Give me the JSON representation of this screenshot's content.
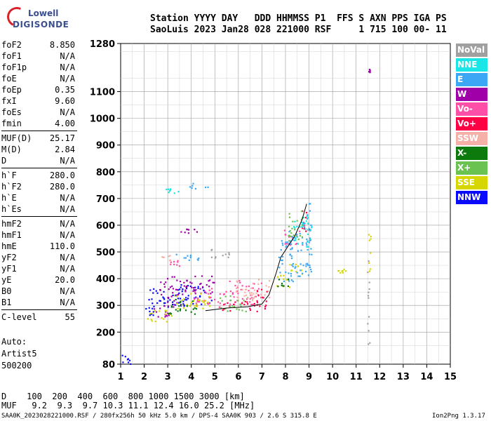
{
  "logo": {
    "line1": "Lowell",
    "line2": "DIGISONDE"
  },
  "header": {
    "line1": "Station YYYY DAY   DDD HHMMSS P1  FFS S AXN PPS IGA PS",
    "line2": "SaoLuis 2023 Jan28 028 221000 RSF     1 715 100 00- 11"
  },
  "params": [
    {
      "group": [
        {
          "name": "foF2",
          "value": "8.850"
        },
        {
          "name": "foF1",
          "value": "N/A"
        },
        {
          "name": "foF1p",
          "value": "N/A"
        },
        {
          "name": "foE",
          "value": "N/A"
        },
        {
          "name": "foEp",
          "value": "0.35"
        },
        {
          "name": "fxI",
          "value": "9.60"
        },
        {
          "name": "foEs",
          "value": "N/A"
        },
        {
          "name": "fmin",
          "value": "4.00"
        }
      ]
    },
    {
      "group": [
        {
          "name": "MUF(D)",
          "value": "25.17"
        },
        {
          "name": "M(D)",
          "value": "2.84"
        },
        {
          "name": "D",
          "value": "N/A"
        }
      ]
    },
    {
      "group": [
        {
          "name": "h`F",
          "value": "280.0"
        },
        {
          "name": "h`F2",
          "value": "280.0"
        },
        {
          "name": "h`E",
          "value": "N/A"
        },
        {
          "name": "h`Es",
          "value": "N/A"
        }
      ]
    },
    {
      "group": [
        {
          "name": "hmF2",
          "value": "N/A"
        },
        {
          "name": "hmF1",
          "value": "N/A"
        },
        {
          "name": "hmE",
          "value": "110.0"
        },
        {
          "name": "yF2",
          "value": "N/A"
        },
        {
          "name": "yF1",
          "value": "N/A"
        },
        {
          "name": "yE",
          "value": "20.0"
        },
        {
          "name": "B0",
          "value": "N/A"
        },
        {
          "name": "B1",
          "value": "N/A"
        }
      ]
    },
    {
      "group": [
        {
          "name": "C-level",
          "value": "55"
        }
      ]
    }
  ],
  "extra": {
    "l1": "Auto:",
    "l2": "Artist5",
    "l3": "500200"
  },
  "legend": [
    {
      "label": "NoVal",
      "color": "#a0a0a0"
    },
    {
      "label": "NNE",
      "color": "#19e6e6"
    },
    {
      "label": "E",
      "color": "#3ca8f5"
    },
    {
      "label": "W",
      "color": "#a000a8"
    },
    {
      "label": "Vo-",
      "color": "#ff4fa7"
    },
    {
      "label": "Vo+",
      "color": "#ff0045"
    },
    {
      "label": "SSW",
      "color": "#f5b0a8"
    },
    {
      "label": "X-",
      "color": "#0d7a0d"
    },
    {
      "label": "X+",
      "color": "#6ac250"
    },
    {
      "label": "SSE",
      "color": "#d6d600"
    },
    {
      "label": "NNW",
      "color": "#0a0aff"
    }
  ],
  "footer": {
    "d_row": "D    100  200  400  600  800 1000 1500 3000 [km]",
    "muf_row": "MUF   9.2  9.3  9.7 10.3 11.1 12.4 16.0 25.2 [MHz]",
    "file_line": "SAA0K_2023028221000.RSF / 280fx256h 50 kHz 5.0 km / DPS-4 SAA0K 903 / 2.6 S 315.8 E",
    "version": "Ion2Png 1.3.17"
  },
  "chart_data": {
    "type": "scatter",
    "title": "",
    "xlabel": "",
    "ylabel": "",
    "xlim": [
      1,
      15
    ],
    "ylim": [
      80,
      1280
    ],
    "x_ticks": [
      "1",
      "2",
      "3",
      "4",
      "5",
      "6",
      "7",
      "8",
      "9",
      "10",
      "11",
      "12",
      "13",
      "14",
      "15"
    ],
    "y_ticks": [
      "80",
      "200",
      "300",
      "400",
      "500",
      "600",
      "700",
      "800",
      "900",
      "1000",
      "1100",
      "1280"
    ],
    "grid": true,
    "series": [
      {
        "name": "NNW",
        "clusters": [
          [
            1.3,
            100,
            0.3,
            20
          ],
          [
            2.9,
            330,
            0.8,
            35
          ],
          [
            4.2,
            340,
            0.8,
            40
          ],
          [
            2.2,
            270,
            0.2,
            25
          ]
        ]
      },
      {
        "name": "W",
        "clusters": [
          [
            3.2,
            370,
            0.6,
            40
          ],
          [
            4.3,
            380,
            0.7,
            35
          ],
          [
            3.9,
            580,
            0.4,
            8
          ],
          [
            2.9,
            290,
            0.5,
            30
          ],
          [
            11.55,
            1180,
            0.03,
            6
          ]
        ]
      },
      {
        "name": "Vo-",
        "clusters": [
          [
            4.8,
            330,
            0.7,
            40
          ],
          [
            6.3,
            350,
            0.7,
            45
          ],
          [
            3.2,
            460,
            0.3,
            10
          ],
          [
            8.3,
            560,
            0.4,
            40
          ]
        ]
      },
      {
        "name": "Vo+",
        "clusters": [
          [
            6.0,
            300,
            0.8,
            20
          ],
          [
            7.0,
            330,
            0.3,
            40
          ],
          [
            8.8,
            620,
            0.2,
            40
          ]
        ]
      },
      {
        "name": "SSE",
        "clusters": [
          [
            2.7,
            260,
            0.6,
            25
          ],
          [
            4.0,
            320,
            0.8,
            30
          ],
          [
            7.9,
            390,
            0.3,
            25
          ],
          [
            8.4,
            440,
            0.3,
            20
          ],
          [
            10.4,
            430,
            0.2,
            8
          ],
          [
            11.55,
            500,
            0.05,
            80
          ]
        ]
      },
      {
        "name": "E",
        "clusters": [
          [
            8.0,
            470,
            0.3,
            80
          ],
          [
            8.6,
            500,
            0.5,
            90
          ],
          [
            4.3,
            750,
            0.4,
            12
          ],
          [
            3.7,
            480,
            0.6,
            15
          ],
          [
            8.9,
            640,
            0.2,
            50
          ]
        ]
      },
      {
        "name": "NNE",
        "clusters": [
          [
            8.7,
            580,
            0.4,
            60
          ],
          [
            3.2,
            730,
            0.3,
            10
          ]
        ]
      },
      {
        "name": "X+",
        "clusters": [
          [
            8.4,
            600,
            0.3,
            60
          ],
          [
            5.8,
            310,
            0.6,
            30
          ]
        ]
      },
      {
        "name": "X-",
        "clusters": [
          [
            3.6,
            300,
            0.6,
            30
          ],
          [
            7.9,
            380,
            0.3,
            20
          ]
        ]
      },
      {
        "name": "SSW",
        "clusters": [
          [
            6.5,
            360,
            0.8,
            40
          ],
          [
            3.0,
            480,
            0.3,
            10
          ]
        ]
      },
      {
        "name": "NoVal",
        "clusters": [
          [
            11.5,
            350,
            0.05,
            200
          ],
          [
            5.2,
            500,
            0.4,
            20
          ]
        ]
      }
    ],
    "trace": {
      "color": "#000000",
      "points": [
        [
          4.6,
          280
        ],
        [
          5.5,
          290
        ],
        [
          6.4,
          295
        ],
        [
          7.0,
          305
        ],
        [
          7.3,
          340
        ],
        [
          7.6,
          420
        ],
        [
          7.8,
          480
        ],
        [
          8.1,
          520
        ],
        [
          8.4,
          560
        ],
        [
          8.7,
          620
        ],
        [
          8.9,
          680
        ]
      ]
    }
  }
}
